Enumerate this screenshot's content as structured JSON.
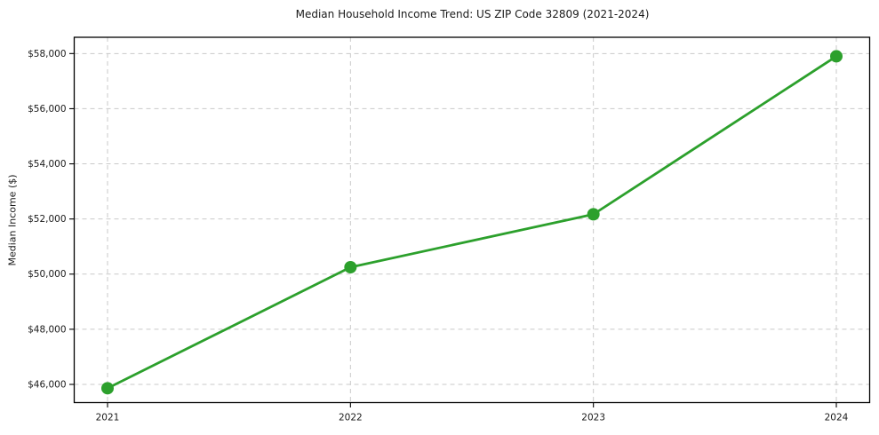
{
  "chart_data": {
    "type": "line",
    "title": "Median Household Income Trend: US ZIP Code 32809 (2021-2024)",
    "ylabel": "Median Income ($)",
    "xlabel": "",
    "categories": [
      "2021",
      "2022",
      "2023",
      "2024"
    ],
    "series": [
      {
        "name": "Median Household Income",
        "values": [
          45860,
          50250,
          52170,
          57900
        ]
      }
    ],
    "ylim": [
      45340,
      58590
    ],
    "yticks": [
      46000,
      48000,
      50000,
      52000,
      54000,
      56000,
      58000
    ],
    "ytick_labels": [
      "$46,000",
      "$48,000",
      "$50,000",
      "$52,000",
      "$54,000",
      "$56,000",
      "$58,000"
    ],
    "grid": true,
    "legend_position": "none",
    "line_color": "#2ca02c",
    "marker": "circle",
    "marker_color": "#2ca02c",
    "grid_color": "#c9c9c9",
    "frame_color": "#000000",
    "text_color": "#1a1a1a",
    "background_color": "#ffffff"
  }
}
